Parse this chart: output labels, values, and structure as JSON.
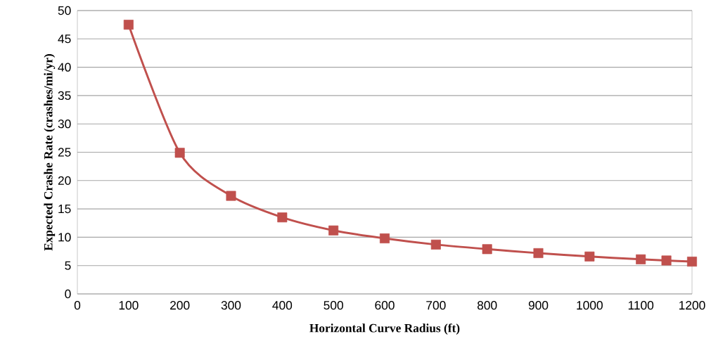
{
  "chart_data": {
    "type": "line",
    "xlabel": "Horizontal Curve Radius (ft)",
    "ylabel": "Expected Crashe Rate (crashes/mi/yr)",
    "x": [
      100,
      200,
      300,
      400,
      500,
      600,
      700,
      800,
      900,
      1000,
      1100,
      1150,
      1200
    ],
    "values": [
      47.5,
      24.9,
      17.3,
      13.5,
      11.2,
      9.8,
      8.7,
      7.9,
      7.2,
      6.6,
      6.1,
      5.9,
      5.7
    ],
    "color": "#c0504d",
    "marker": "square",
    "line_style": "solid",
    "grid": "y",
    "xlim": [
      0,
      1200
    ],
    "ylim": [
      0,
      50
    ],
    "xticks": [
      0,
      100,
      200,
      300,
      400,
      500,
      600,
      700,
      800,
      900,
      1000,
      1100,
      1200
    ],
    "yticks": [
      0,
      5,
      10,
      15,
      20,
      25,
      30,
      35,
      40,
      45,
      50
    ]
  }
}
